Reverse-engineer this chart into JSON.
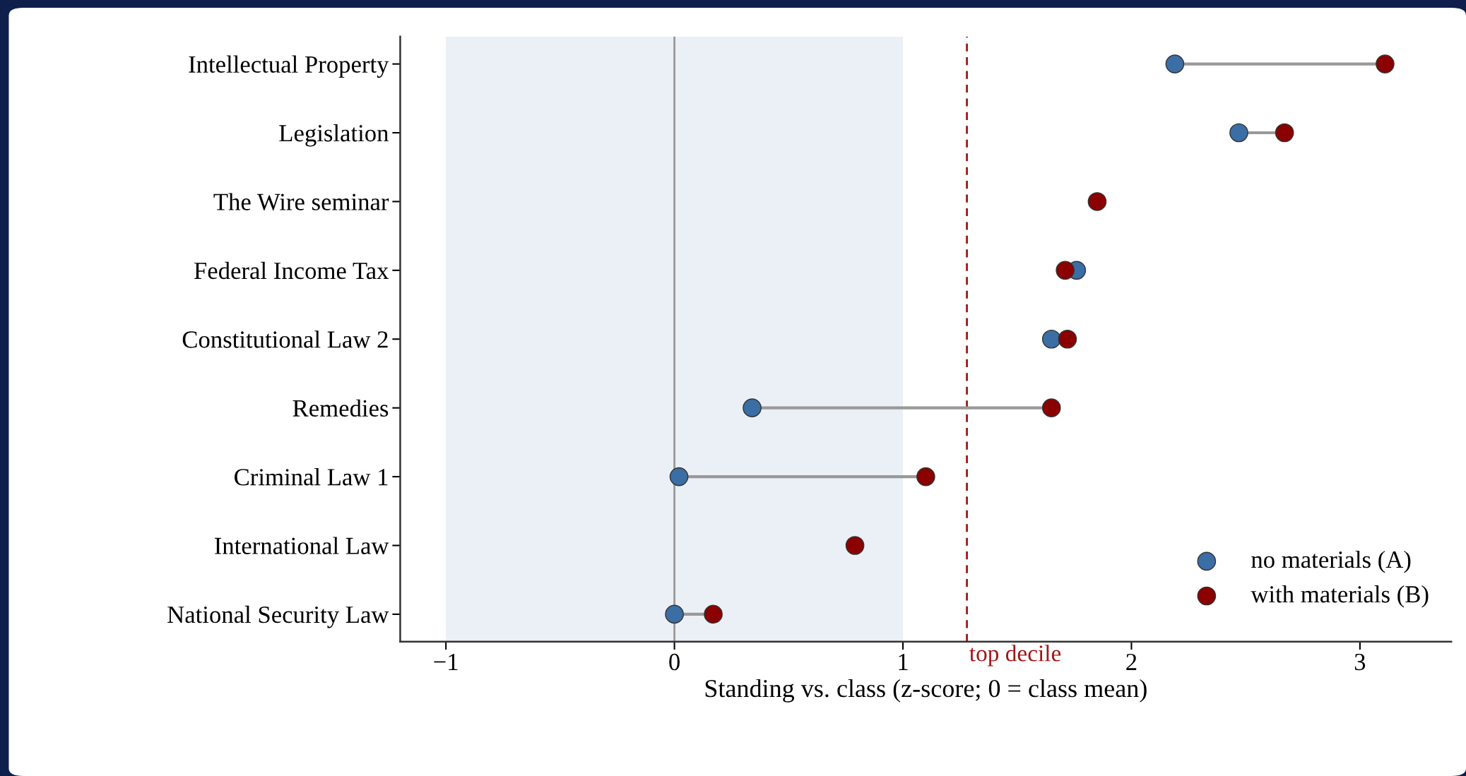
{
  "chart_data": {
    "type": "scatter",
    "xlabel": "Standing vs. class (z-score; 0 = class mean)",
    "categories": [
      "Intellectual Property",
      "Legislation",
      "The Wire seminar",
      "Federal Income Tax",
      "Constitutional Law 2",
      "Remedies",
      "Criminal Law 1",
      "International Law",
      "National Security Law"
    ],
    "series": [
      {
        "name": "no materials (A)",
        "color": "#3a6ea5",
        "values": [
          2.19,
          2.47,
          null,
          1.76,
          1.65,
          0.34,
          0.02,
          null,
          0.0
        ]
      },
      {
        "name": "with materials (B)",
        "color": "#8b0000",
        "values": [
          3.11,
          2.67,
          1.85,
          1.71,
          1.72,
          1.65,
          1.1,
          0.79,
          0.17
        ]
      }
    ],
    "orientation": "horizontal",
    "xlim": [
      -1.2,
      3.4
    ],
    "xticks": [
      {
        "value": -1,
        "label": "−1"
      },
      0,
      1,
      2,
      3
    ],
    "ref_lines": [
      {
        "axis": "x",
        "value": 0,
        "label": null,
        "color": "#999999",
        "line_style": "solid"
      },
      {
        "axis": "x",
        "value": 1.28,
        "label": "top decile",
        "color": "#a31515",
        "line_style": "dashed"
      }
    ],
    "bands": [
      {
        "axis": "x",
        "from": -1,
        "to": 1,
        "label": null,
        "color": "#ebf0f7"
      }
    ],
    "marker": "circle",
    "legend": "bottom right",
    "grid": false
  }
}
